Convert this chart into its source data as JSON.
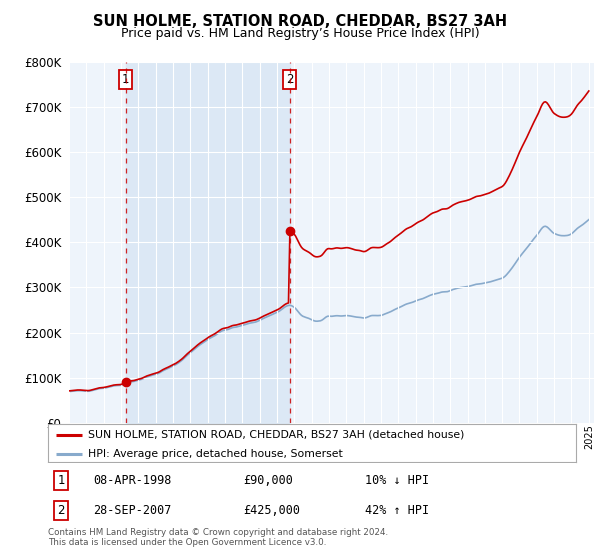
{
  "title": "SUN HOLME, STATION ROAD, CHEDDAR, BS27 3AH",
  "subtitle": "Price paid vs. HM Land Registry’s House Price Index (HPI)",
  "sale1_date": "08-APR-1998",
  "sale1_price": 90000,
  "sale1_year": 1998.27,
  "sale2_date": "28-SEP-2007",
  "sale2_price": 425000,
  "sale2_year": 2007.74,
  "sale1_hpi_diff": "10% ↓ HPI",
  "sale2_hpi_diff": "42% ↑ HPI",
  "legend_line1": "SUN HOLME, STATION ROAD, CHEDDAR, BS27 3AH (detached house)",
  "legend_line2": "HPI: Average price, detached house, Somerset",
  "footer": "Contains HM Land Registry data © Crown copyright and database right 2024.\nThis data is licensed under the Open Government Licence v3.0.",
  "red_color": "#cc0000",
  "blue_color": "#88aacc",
  "shade_color": "#dce8f5",
  "ylim_max": 800000,
  "background_color": "#ffffff",
  "chart_bg": "#eef4fb"
}
